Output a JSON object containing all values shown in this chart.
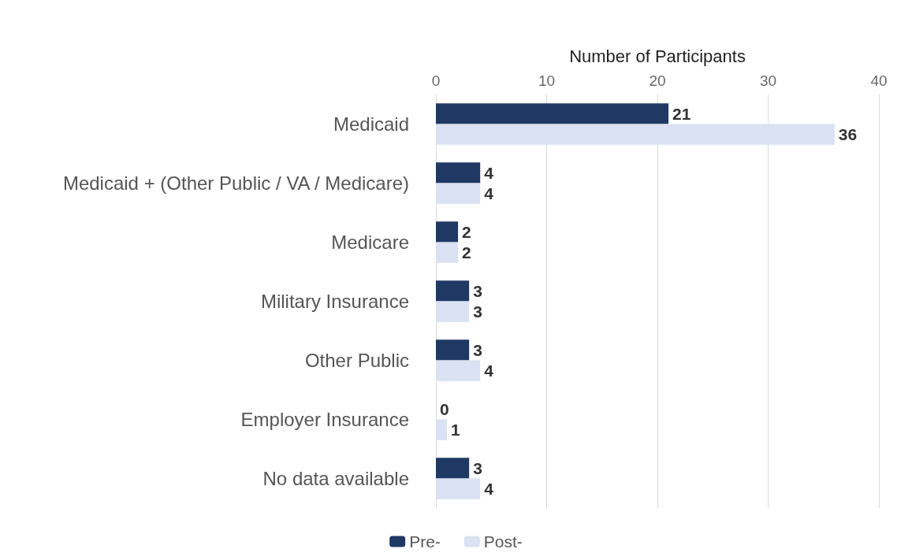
{
  "chart_data": {
    "type": "bar",
    "orientation": "horizontal",
    "xlabel": "Number of Participants",
    "categories": [
      "Medicaid",
      "Medicaid + (Other Public / VA / Medicare)",
      "Medicare",
      "Military Insurance",
      "Other Public",
      "Employer Insurance",
      "No data available"
    ],
    "series": [
      {
        "name": "Pre-",
        "color": "#1f3864",
        "values": [
          21,
          4,
          2,
          3,
          3,
          0,
          3
        ]
      },
      {
        "name": "Post-",
        "color": "#d9e1f2",
        "values": [
          36,
          4,
          2,
          3,
          4,
          1,
          4
        ]
      }
    ],
    "xlim": [
      0,
      40
    ],
    "xticks": [
      0,
      10,
      20,
      30,
      40
    ],
    "grid": "x",
    "legend": "bottom",
    "data_labels": true
  }
}
